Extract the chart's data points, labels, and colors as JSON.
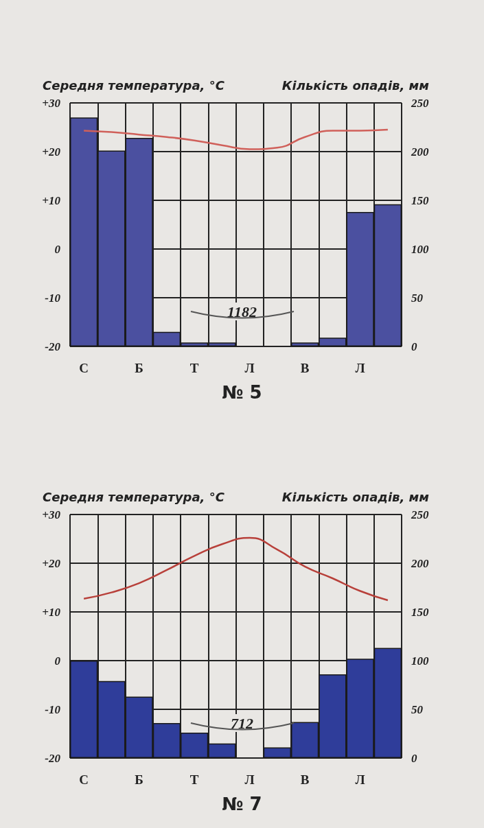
{
  "chart_data": [
    {
      "type": "bar",
      "title": "№ 5",
      "ylabel": "Середня температура, °C",
      "y2label": "Кількість опадів, мм",
      "categories": [
        "С",
        null,
        "Б",
        null,
        "Т",
        null,
        "Л",
        null,
        "В",
        null,
        "Л",
        null
      ],
      "series": [
        {
          "axis": "y2",
          "color": "#4b50a0",
          "values": [
            235,
            201,
            214,
            15,
            4,
            4,
            0,
            0,
            4,
            9,
            138,
            146
          ]
        },
        {
          "type": "line",
          "axis": "y",
          "color": "#d0605a",
          "values": [
            24.3,
            24,
            23.5,
            23,
            22.3,
            21.3,
            20.5,
            20.8,
            23,
            24.3,
            24.3,
            24.5
          ]
        }
      ],
      "ylim": [
        -20,
        30
      ],
      "yticks": [
        {
          "value": -20,
          "label": "-20"
        },
        {
          "value": -10,
          "label": "-10"
        },
        0,
        {
          "value": 10,
          "label": "+10"
        },
        {
          "value": 20,
          "label": "+20"
        },
        {
          "value": 30,
          "label": "+30"
        }
      ],
      "y2lim": [
        0,
        250
      ],
      "y2ticks": [
        0,
        50,
        100,
        150,
        200,
        250
      ],
      "annotations": [
        "1182"
      ],
      "grid": true
    },
    {
      "type": "bar",
      "title": "№ 7",
      "ylabel": "Середня температура, °C",
      "y2label": "Кількість опадів, мм",
      "categories": [
        "С",
        null,
        "Б",
        null,
        "Т",
        null,
        "Л",
        null,
        "В",
        null,
        "Л",
        null
      ],
      "series": [
        {
          "axis": "y2",
          "color": "#2f3d9a",
          "values": [
            100,
            79,
            63,
            36,
            26,
            15,
            0,
            11,
            37,
            86,
            102,
            113
          ]
        },
        {
          "type": "line",
          "axis": "y",
          "color": "#b8403a",
          "values": [
            12.7,
            14,
            15.9,
            18.6,
            21.5,
            23.9,
            25.2,
            22.8,
            19.3,
            16.9,
            14.3,
            12.4
          ]
        }
      ],
      "ylim": [
        -20,
        30
      ],
      "yticks": [
        {
          "value": -20,
          "label": "-20"
        },
        {
          "value": -10,
          "label": "-10"
        },
        0,
        {
          "value": 10,
          "label": "+10"
        },
        {
          "value": 20,
          "label": "+20"
        },
        {
          "value": 30,
          "label": "+30"
        }
      ],
      "y2lim": [
        0,
        250
      ],
      "y2ticks": [
        0,
        50,
        100,
        150,
        200,
        250
      ],
      "annotations": [
        "712"
      ],
      "grid": true
    }
  ]
}
